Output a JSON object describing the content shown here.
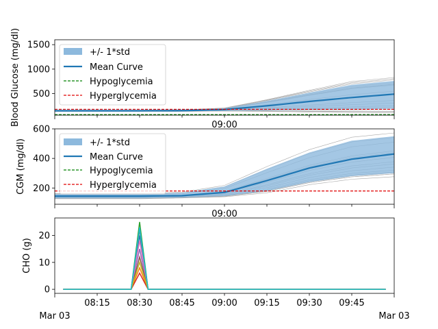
{
  "chart_data": [
    {
      "type": "line",
      "ylabel": "Blood Glucose (mg/dl)",
      "xlabel": "",
      "ylim": [
        60,
        1600
      ],
      "yticks": [
        500,
        1000,
        1500
      ],
      "x_range": [
        "08:00",
        "10:00"
      ],
      "center_tick_label": "09:00",
      "grid": false,
      "legend_position": "upper-left",
      "legend": [
        "+/- 1*std",
        "Mean Curve",
        "Hypoglycemia",
        "Hyperglycemia"
      ],
      "mean_curve": {
        "x": [
          "08:00",
          "08:30",
          "08:45",
          "09:00",
          "09:15",
          "09:30",
          "09:45",
          "10:00"
        ],
        "y": [
          150,
          150,
          152,
          175,
          250,
          340,
          420,
          490
        ]
      },
      "std_upper": [
        160,
        160,
        165,
        200,
        350,
        520,
        680,
        760
      ],
      "std_lower": [
        140,
        140,
        140,
        150,
        160,
        170,
        180,
        190
      ],
      "hypoglycemia_threshold": 70,
      "hyperglycemia_threshold": 180,
      "colors": {
        "band": "#8db9dd",
        "mean": "#1f77b4",
        "hypo": "#008000",
        "hyper": "#e00000",
        "traces": "#a8a8a8"
      }
    },
    {
      "type": "line",
      "ylabel": "CGM (mg/dl)",
      "xlabel": "",
      "ylim": [
        90,
        600
      ],
      "yticks": [
        200,
        400,
        600
      ],
      "x_range": [
        "08:00",
        "10:00"
      ],
      "center_tick_label": "09:00",
      "grid": false,
      "legend_position": "upper-left",
      "legend": [
        "+/- 1*std",
        "Mean Curve",
        "Hypoglycemia",
        "Hyperglycemia"
      ],
      "mean_curve": {
        "x": [
          "08:00",
          "08:30",
          "08:45",
          "09:00",
          "09:15",
          "09:30",
          "09:45",
          "10:00"
        ],
        "y": [
          145,
          145,
          148,
          170,
          250,
          335,
          395,
          430
        ]
      },
      "std_upper": [
        160,
        160,
        168,
        210,
        330,
        440,
        520,
        550
      ],
      "std_lower": [
        130,
        130,
        135,
        145,
        180,
        240,
        280,
        300
      ],
      "hypoglycemia_threshold": 70,
      "hyperglycemia_threshold": 180,
      "colors": {
        "band": "#8db9dd",
        "mean": "#1f77b4",
        "hypo": "#008000",
        "hyper": "#e00000",
        "traces": "#a8a8a8"
      }
    },
    {
      "type": "line",
      "ylabel": "CHO (g)",
      "xlabel": "",
      "ylim": [
        -1.5,
        26.5
      ],
      "yticks": [
        0,
        10,
        20
      ],
      "x_range": [
        "08:00",
        "10:00"
      ],
      "xticks": [
        "08:15",
        "08:30",
        "08:45",
        "09:00",
        "09:15",
        "09:30",
        "09:45"
      ],
      "date_label_left": "Mar 03",
      "date_label_right": "Mar 03",
      "grid": false,
      "peak_time": "08:30",
      "pulse_start": "08:27",
      "pulse_end": "08:33",
      "last_time": "09:57",
      "series": [
        {
          "color": "#1f77b4",
          "peak": 20
        },
        {
          "color": "#ff7f0e",
          "peak": 8
        },
        {
          "color": "#2ca02c",
          "peak": 25
        },
        {
          "color": "#d62728",
          "peak": 6
        },
        {
          "color": "#9467bd",
          "peak": 15
        },
        {
          "color": "#8c564b",
          "peak": 12
        },
        {
          "color": "#e377c2",
          "peak": 18
        },
        {
          "color": "#7f7f7f",
          "peak": 22
        },
        {
          "color": "#bcbd22",
          "peak": 10
        },
        {
          "color": "#17becf",
          "peak": 23
        }
      ]
    }
  ]
}
